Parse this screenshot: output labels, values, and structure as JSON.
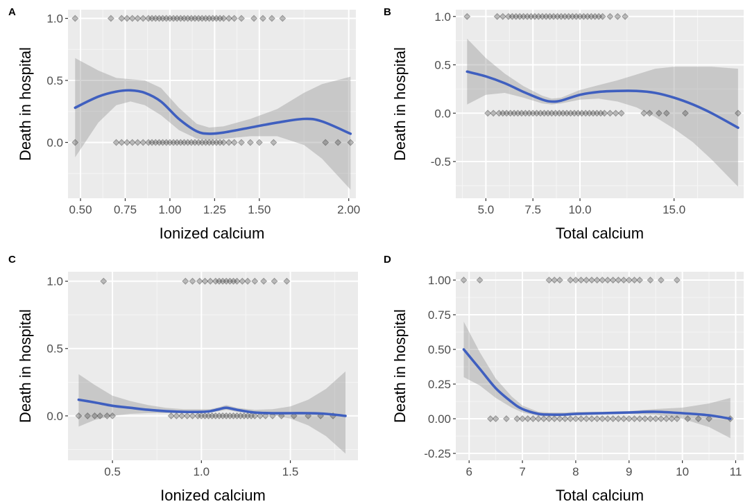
{
  "chart_data": [
    {
      "type": "scatter",
      "panel": "A",
      "xlabel": "Ionized calcium",
      "ylabel": "Death in hospital",
      "xlim": [
        0.43,
        2.04
      ],
      "ylim": [
        -0.45,
        1.07
      ],
      "x_ticks": [
        0.5,
        0.75,
        1.0,
        1.25,
        1.5,
        2.0
      ],
      "x_tick_labels": [
        "0.50",
        "0.75",
        "1.00",
        "1.25",
        "1.50",
        "2.00"
      ],
      "y_ticks": [
        0.0,
        0.5,
        1.0
      ],
      "y_tick_labels": [
        "0.0",
        "0.5",
        "1.0"
      ],
      "points_y1": [
        0.47,
        0.67,
        0.73,
        0.76,
        0.79,
        0.82,
        0.85,
        0.88,
        0.9,
        0.92,
        0.94,
        0.96,
        0.98,
        1.0,
        1.02,
        1.04,
        1.06,
        1.08,
        1.1,
        1.12,
        1.14,
        1.16,
        1.18,
        1.2,
        1.22,
        1.24,
        1.26,
        1.28,
        1.3,
        1.33,
        1.36,
        1.4,
        1.47,
        1.52,
        1.57,
        1.63
      ],
      "points_y0": [
        0.47,
        0.7,
        0.73,
        0.76,
        0.79,
        0.82,
        0.85,
        0.88,
        0.9,
        0.92,
        0.94,
        0.96,
        0.98,
        1.0,
        1.02,
        1.04,
        1.06,
        1.08,
        1.1,
        1.12,
        1.14,
        1.16,
        1.18,
        1.2,
        1.22,
        1.24,
        1.26,
        1.28,
        1.3,
        1.33,
        1.36,
        1.4,
        1.45,
        1.5,
        1.58,
        1.87,
        1.94,
        2.01
      ],
      "smooth": {
        "x": [
          0.47,
          0.6,
          0.7,
          0.78,
          0.86,
          0.95,
          1.05,
          1.15,
          1.22,
          1.3,
          1.45,
          1.6,
          1.75,
          1.85,
          2.01
        ],
        "y": [
          0.28,
          0.37,
          0.41,
          0.42,
          0.4,
          0.33,
          0.19,
          0.09,
          0.07,
          0.08,
          0.12,
          0.16,
          0.19,
          0.17,
          0.07
        ],
        "lower": [
          -0.12,
          0.16,
          0.3,
          0.33,
          0.3,
          0.22,
          0.1,
          0.03,
          0.02,
          0.03,
          0.05,
          0.05,
          -0.02,
          -0.13,
          -0.38
        ],
        "upper": [
          0.68,
          0.58,
          0.52,
          0.51,
          0.5,
          0.44,
          0.28,
          0.15,
          0.12,
          0.13,
          0.19,
          0.27,
          0.4,
          0.47,
          0.53
        ]
      }
    },
    {
      "type": "scatter",
      "panel": "B",
      "xlabel": "Total calcium",
      "ylabel": "Death in hospital",
      "xlim": [
        3.4,
        18.7
      ],
      "ylim": [
        -0.88,
        1.07
      ],
      "x_ticks": [
        5.0,
        7.5,
        10.0,
        15.0
      ],
      "x_tick_labels": [
        "5.0",
        "7.5",
        "10.0",
        "15.0"
      ],
      "y_ticks": [
        -0.5,
        0.0,
        0.5,
        1.0
      ],
      "y_tick_labels": [
        "-0.5",
        "0.0",
        "0.5",
        "1.0"
      ],
      "points_y1": [
        4.0,
        5.6,
        5.9,
        6.2,
        6.4,
        6.6,
        6.8,
        7.0,
        7.2,
        7.4,
        7.6,
        7.8,
        8.0,
        8.2,
        8.4,
        8.6,
        8.8,
        9.0,
        9.2,
        9.4,
        9.6,
        9.8,
        10.0,
        10.2,
        10.4,
        10.6,
        10.8,
        11.0,
        11.2,
        11.6,
        12.0,
        12.4
      ],
      "points_y0": [
        5.1,
        5.4,
        5.7,
        5.9,
        6.1,
        6.3,
        6.5,
        6.7,
        6.9,
        7.1,
        7.3,
        7.5,
        7.7,
        7.9,
        8.1,
        8.3,
        8.5,
        8.7,
        8.9,
        9.1,
        9.3,
        9.5,
        9.7,
        9.9,
        10.1,
        10.3,
        10.5,
        10.7,
        10.9,
        11.1,
        11.3,
        11.6,
        11.9,
        12.2,
        13.4,
        13.7,
        14.2,
        14.6,
        15.6,
        18.4
      ],
      "smooth": {
        "x": [
          4.0,
          5.0,
          6.0,
          7.0,
          8.0,
          8.5,
          9.0,
          10.0,
          11.0,
          12.0,
          13.0,
          14.0,
          15.0,
          16.0,
          17.0,
          18.4
        ],
        "y": [
          0.43,
          0.38,
          0.31,
          0.22,
          0.14,
          0.12,
          0.13,
          0.19,
          0.22,
          0.23,
          0.23,
          0.21,
          0.16,
          0.09,
          0.0,
          -0.15
        ],
        "lower": [
          0.09,
          0.19,
          0.21,
          0.16,
          0.1,
          0.09,
          0.1,
          0.14,
          0.15,
          0.12,
          0.06,
          -0.04,
          -0.16,
          -0.3,
          -0.48,
          -0.76
        ],
        "upper": [
          0.77,
          0.57,
          0.41,
          0.28,
          0.18,
          0.15,
          0.16,
          0.24,
          0.29,
          0.34,
          0.4,
          0.46,
          0.48,
          0.48,
          0.48,
          0.46
        ]
      }
    },
    {
      "type": "scatter",
      "panel": "C",
      "xlabel": "Ionized calcium",
      "ylabel": "Death in hospital",
      "xlim": [
        0.25,
        1.88
      ],
      "ylim": [
        -0.33,
        1.07
      ],
      "x_ticks": [
        0.5,
        1.0,
        1.5
      ],
      "x_tick_labels": [
        "0.5",
        "1.0",
        "1.5"
      ],
      "y_ticks": [
        0.0,
        0.5,
        1.0
      ],
      "y_tick_labels": [
        "0.0",
        "0.5",
        "1.0"
      ],
      "points_y1": [
        0.45,
        0.91,
        0.95,
        0.99,
        1.02,
        1.05,
        1.08,
        1.1,
        1.12,
        1.14,
        1.16,
        1.18,
        1.2,
        1.23,
        1.26,
        1.3,
        1.35,
        1.41,
        1.48
      ],
      "points_y0": [
        0.31,
        0.36,
        0.4,
        0.43,
        0.47,
        0.5,
        0.83,
        0.86,
        0.89,
        0.92,
        0.95,
        0.98,
        1.0,
        1.02,
        1.04,
        1.06,
        1.08,
        1.1,
        1.12,
        1.14,
        1.16,
        1.18,
        1.2,
        1.22,
        1.24,
        1.26,
        1.28,
        1.3,
        1.33,
        1.36,
        1.4,
        1.45,
        1.52,
        1.6,
        1.67,
        1.74
      ],
      "smooth": {
        "x": [
          0.31,
          0.4,
          0.5,
          0.6,
          0.7,
          0.8,
          0.9,
          1.0,
          1.05,
          1.1,
          1.14,
          1.2,
          1.3,
          1.4,
          1.5,
          1.6,
          1.7,
          1.81
        ],
        "y": [
          0.12,
          0.1,
          0.075,
          0.06,
          0.045,
          0.035,
          0.03,
          0.03,
          0.035,
          0.05,
          0.06,
          0.045,
          0.025,
          0.02,
          0.02,
          0.02,
          0.015,
          0.0
        ],
        "lower": [
          -0.08,
          -0.03,
          0.0,
          0.015,
          0.02,
          0.02,
          0.02,
          0.02,
          0.025,
          0.035,
          0.045,
          0.03,
          0.015,
          0.005,
          -0.02,
          -0.07,
          -0.15,
          -0.28
        ],
        "upper": [
          0.31,
          0.23,
          0.15,
          0.11,
          0.08,
          0.06,
          0.05,
          0.05,
          0.05,
          0.065,
          0.08,
          0.06,
          0.045,
          0.05,
          0.07,
          0.12,
          0.2,
          0.33
        ]
      }
    },
    {
      "type": "scatter",
      "panel": "D",
      "xlabel": "Total calcium",
      "ylabel": "Death in hospital",
      "xlim": [
        5.75,
        11.15
      ],
      "ylim": [
        -0.3,
        1.06
      ],
      "x_ticks": [
        6,
        7,
        8,
        9,
        10,
        11
      ],
      "x_tick_labels": [
        "6",
        "7",
        "8",
        "9",
        "10",
        "11"
      ],
      "y_ticks": [
        -0.25,
        0.0,
        0.25,
        0.5,
        0.75,
        1.0
      ],
      "y_tick_labels": [
        "-0.25",
        "0.00",
        "0.25",
        "0.50",
        "0.75",
        "1.00"
      ],
      "points_y1": [
        5.9,
        6.2,
        7.5,
        7.6,
        7.7,
        7.9,
        8.0,
        8.1,
        8.2,
        8.3,
        8.4,
        8.5,
        8.6,
        8.7,
        8.8,
        8.9,
        9.0,
        9.1,
        9.2,
        9.4,
        9.6,
        9.9
      ],
      "points_y0": [
        6.4,
        6.5,
        6.7,
        6.9,
        7.0,
        7.1,
        7.2,
        7.3,
        7.4,
        7.5,
        7.6,
        7.7,
        7.8,
        7.9,
        8.0,
        8.1,
        8.2,
        8.3,
        8.4,
        8.5,
        8.6,
        8.7,
        8.8,
        8.9,
        9.0,
        9.1,
        9.2,
        9.3,
        9.4,
        9.5,
        9.6,
        9.7,
        9.8,
        9.9,
        10.1,
        10.3,
        10.5,
        10.9
      ],
      "smooth": {
        "x": [
          5.9,
          6.2,
          6.5,
          6.8,
          7.0,
          7.3,
          7.5,
          7.8,
          8.0,
          8.5,
          9.0,
          9.5,
          10.0,
          10.5,
          10.9
        ],
        "y": [
          0.5,
          0.36,
          0.22,
          0.12,
          0.07,
          0.035,
          0.03,
          0.03,
          0.035,
          0.04,
          0.045,
          0.05,
          0.04,
          0.025,
          0.0
        ],
        "lower": [
          0.3,
          0.24,
          0.15,
          0.08,
          0.045,
          0.02,
          0.015,
          0.02,
          0.025,
          0.03,
          0.035,
          0.03,
          0.0,
          -0.06,
          -0.14
        ],
        "upper": [
          0.7,
          0.48,
          0.29,
          0.16,
          0.095,
          0.05,
          0.045,
          0.045,
          0.05,
          0.05,
          0.055,
          0.07,
          0.08,
          0.11,
          0.15
        ]
      }
    }
  ]
}
